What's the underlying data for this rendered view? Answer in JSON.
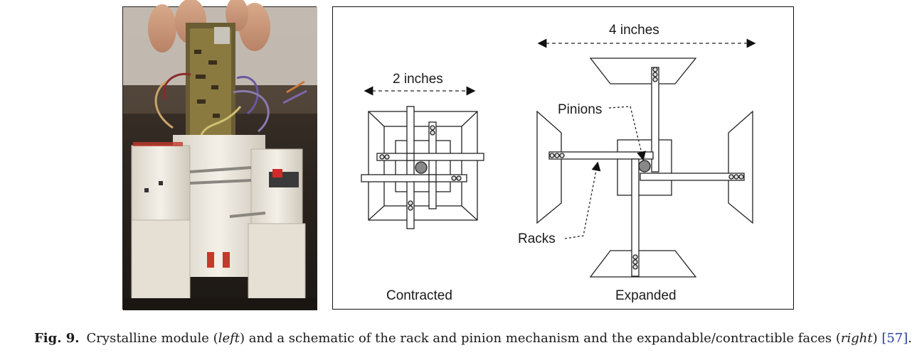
{
  "figure": {
    "schematic": {
      "dim_contracted": "2 inches",
      "dim_expanded": "4 inches",
      "label_pinions": "Pinions",
      "label_racks": "Racks",
      "label_contracted": "Contracted",
      "label_expanded": "Expanded"
    },
    "caption": {
      "fig_label": "Fig. 9.",
      "text_1": "Crystalline module (",
      "left_word": "left",
      "text_2": ") and a schematic of the rack and pinion mechanism and the expandable/contractible faces (",
      "right_word": "right",
      "text_3": ") ",
      "reference": "[57]",
      "text_end": "."
    }
  }
}
